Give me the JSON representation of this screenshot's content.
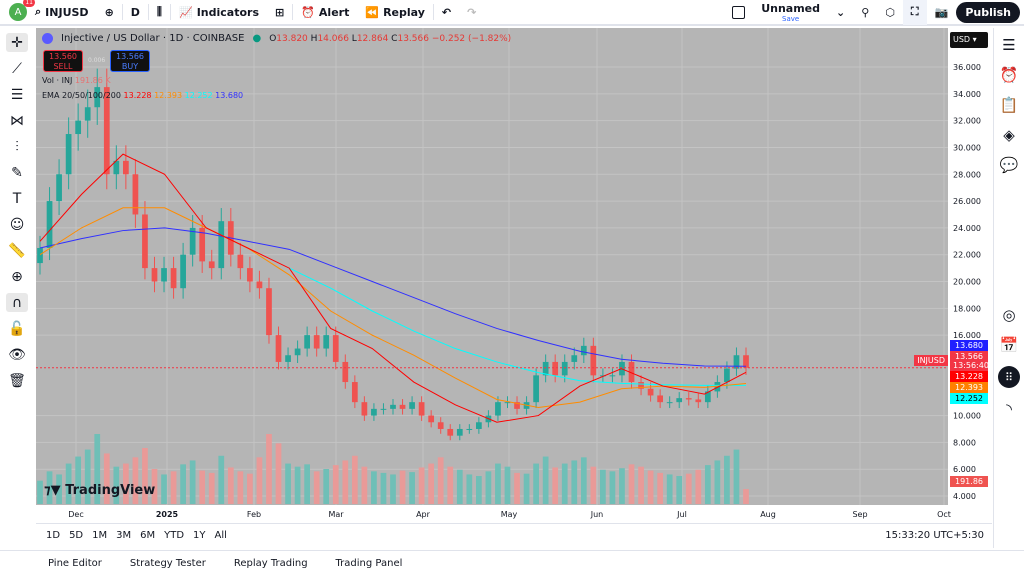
{
  "toolbar": {
    "avatar": "A",
    "notifications": "11",
    "symbol": "INJUSD",
    "interval": "D",
    "indicators": "Indicators",
    "alert": "Alert",
    "replay": "Replay",
    "layout_name": "Unnamed",
    "save": "Save",
    "publish": "Publish"
  },
  "legend": {
    "title": "Injective / US Dollar · 1D · COINBASE",
    "o": "13.820",
    "h": "14.066",
    "l": "12.864",
    "c": "13.566",
    "change": "−0.252 (−1.82%)",
    "sell_price": "13.560",
    "sell": "SELL",
    "spread": "0.006",
    "buy_price": "13.566",
    "buy": "BUY",
    "vol_label": "Vol · INJ",
    "vol_value": "191.86 K",
    "ema_label": "EMA 20/50/100/200",
    "ema20": "13.228",
    "ema50": "12.393",
    "ema100": "12.252",
    "ema200": "13.680"
  },
  "currency": "USD",
  "price_labels": {
    "symbol": "INJUSD",
    "ema200": "13.680",
    "last": "13.566",
    "countdown": "13:56:40",
    "ema20": "13.228",
    "ema50": "12.393",
    "ema100": "12.252",
    "volume": "191.86 K"
  },
  "bottom": {
    "ranges": [
      "1D",
      "5D",
      "1M",
      "3M",
      "6M",
      "YTD",
      "1Y",
      "All"
    ],
    "clock": "15:33:20 UTC+5:30"
  },
  "tabs": [
    "Pine Editor",
    "Strategy Tester",
    "Replay Trading",
    "Trading Panel"
  ],
  "watermark": "TradingView",
  "colors": {
    "up": "#26a69a",
    "down": "#ef5350",
    "ema20": "#ff0000",
    "ema50": "#ff8c00",
    "ema100": "#00ffff",
    "ema200": "#3030ff",
    "bg": "#b5b5b5"
  },
  "chart_data": {
    "type": "candlestick",
    "y_ticks": [
      "4.000",
      "6.000",
      "8.000",
      "10.000",
      "16.000",
      "18.000",
      "20.000",
      "22.000",
      "24.000",
      "26.000",
      "28.000",
      "30.000",
      "32.000",
      "34.000",
      "36.000"
    ],
    "ylim": [
      4,
      36
    ],
    "x_ticks": [
      "Dec",
      "2025",
      "Feb",
      "Mar",
      "Apr",
      "May",
      "Jun",
      "Jul",
      "Aug",
      "Sep",
      "Oct"
    ],
    "close": [
      22.5,
      26,
      28,
      31,
      32,
      33,
      34.5,
      28,
      29,
      28,
      25,
      21,
      20,
      21,
      19.5,
      22,
      24,
      21.5,
      21,
      24.5,
      22,
      21,
      20,
      19.5,
      16,
      14,
      14.5,
      15,
      16,
      15,
      16,
      14,
      12.5,
      11,
      10,
      10.5,
      10.5,
      10.8,
      10.5,
      11,
      10,
      9.5,
      9,
      8.5,
      9,
      9,
      9.5,
      10,
      11,
      11,
      10.5,
      11,
      13,
      14,
      13,
      14,
      14.5,
      15.2,
      13,
      13,
      13,
      14,
      12.5,
      12,
      11.5,
      11,
      11,
      11.3,
      11.2,
      11,
      11.8,
      12.5,
      13.5,
      14.5,
      13.566
    ],
    "volume_k": [
      300,
      420,
      380,
      520,
      610,
      700,
      900,
      650,
      480,
      520,
      600,
      720,
      450,
      380,
      420,
      510,
      560,
      430,
      400,
      620,
      470,
      420,
      390,
      600,
      900,
      780,
      520,
      480,
      510,
      420,
      450,
      500,
      560,
      620,
      480,
      420,
      400,
      380,
      430,
      410,
      470,
      520,
      600,
      480,
      440,
      380,
      360,
      420,
      520,
      480,
      400,
      390,
      520,
      610,
      470,
      520,
      560,
      600,
      480,
      440,
      420,
      460,
      510,
      480,
      430,
      400,
      380,
      360,
      390,
      440,
      500,
      560,
      620,
      700,
      191.86
    ],
    "ema200": [
      22.5,
      23.2,
      23.8,
      24,
      23.6,
      23,
      22.4,
      21.2,
      20,
      18.8,
      17.6,
      16.5,
      15.6,
      14.8,
      14.2,
      13.9,
      13.7,
      13.68
    ],
    "ema100": [
      null,
      null,
      null,
      null,
      null,
      null,
      21,
      19.5,
      17.8,
      16.3,
      15,
      14,
      13.2,
      12.6,
      12.4,
      12.3,
      12.25,
      12.252
    ],
    "ema50": [
      22,
      24,
      25.5,
      25.5,
      24,
      22.5,
      20.5,
      17.8,
      16,
      14.5,
      12.8,
      11.2,
      10.6,
      11,
      12,
      12.2,
      12.1,
      12.393
    ],
    "ema20": [
      23,
      26.5,
      29.5,
      28,
      24,
      22.5,
      21,
      16.5,
      15,
      12.5,
      10.8,
      9.5,
      10,
      12.2,
      13.5,
      12.2,
      11.6,
      13.228
    ]
  }
}
